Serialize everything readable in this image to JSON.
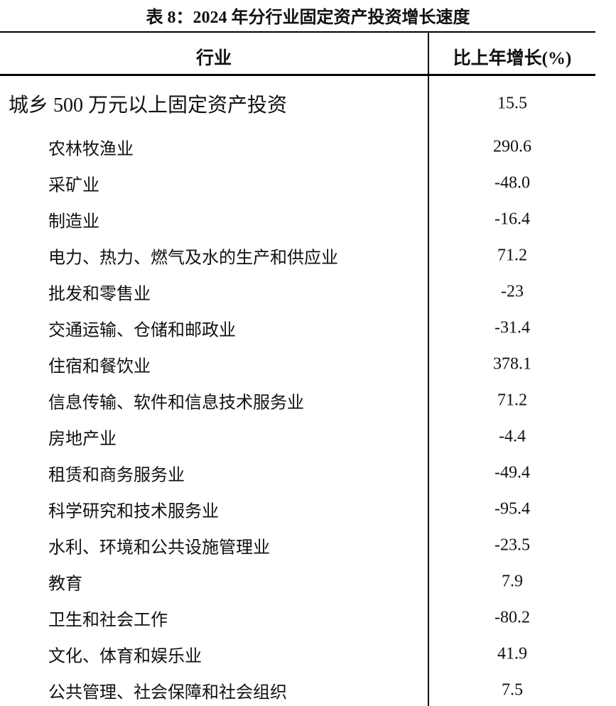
{
  "title": "表 8：2024 年分行业固定资产投资增长速度",
  "table": {
    "header": [
      "行业",
      "比上年增长(%)"
    ],
    "rows": [
      [
        "城乡 500 万元以上固定资产投资",
        "15.5"
      ],
      [
        "农林牧渔业",
        "290.6"
      ],
      [
        "采矿业",
        "-48.0"
      ],
      [
        "制造业",
        "-16.4"
      ],
      [
        "电力、热力、燃气及水的生产和供应业",
        "71.2"
      ],
      [
        "批发和零售业",
        "-23"
      ],
      [
        "交通运输、仓储和邮政业",
        "-31.4"
      ],
      [
        "住宿和餐饮业",
        "378.1"
      ],
      [
        "信息传输、软件和信息技术服务业",
        "71.2"
      ],
      [
        "房地产业",
        "-4.4"
      ],
      [
        "租赁和商务服务业",
        "-49.4"
      ],
      [
        "科学研究和技术服务业",
        "-95.4"
      ],
      [
        "水利、环境和公共设施管理业",
        "-23.5"
      ],
      [
        "教育",
        "7.9"
      ],
      [
        "卫生和社会工作",
        "-80.2"
      ],
      [
        "文化、体育和娱乐业",
        "41.9"
      ],
      [
        "公共管理、社会保障和社会组织",
        "7.5"
      ]
    ]
  }
}
